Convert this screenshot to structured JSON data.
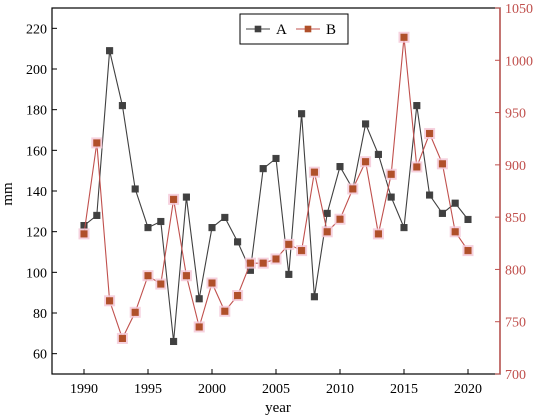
{
  "chart_data": {
    "type": "line",
    "xlabel": "year",
    "x_ticks": [
      "1990",
      "1995",
      "2000",
      "2005",
      "2010",
      "2015",
      "2020"
    ],
    "xlim": [
      1987.5,
      2022.5
    ],
    "y_axes": [
      {
        "side": "left",
        "label": "mm",
        "ylim": [
          50,
          230
        ],
        "ticks": [
          "60",
          "80",
          "100",
          "120",
          "140",
          "160",
          "180",
          "200",
          "220"
        ],
        "color": "#000000"
      },
      {
        "side": "right",
        "label": "",
        "ylim": [
          700,
          1050
        ],
        "ticks": [
          "700",
          "750",
          "800",
          "850",
          "900",
          "950",
          "1000",
          "1050"
        ],
        "color": "#c0504d"
      }
    ],
    "legend_placement": "top-center",
    "grid": false,
    "x": [
      1990,
      1991,
      1992,
      1993,
      1994,
      1995,
      1996,
      1997,
      1998,
      1999,
      2000,
      2001,
      2002,
      2003,
      2004,
      2005,
      2006,
      2007,
      2008,
      2009,
      2010,
      2011,
      2012,
      2013,
      2014,
      2015,
      2016,
      2017,
      2018,
      2019,
      2020
    ],
    "series": [
      {
        "name": "A",
        "axis": "left",
        "color": "#404040",
        "line_color": "#404040",
        "marker_color": "#404040",
        "values": [
          123,
          128,
          209,
          182,
          141,
          122,
          125,
          66,
          137,
          87,
          122,
          127,
          115,
          101,
          151,
          156,
          99,
          178,
          88,
          129,
          152,
          141,
          173,
          158,
          137,
          122,
          182,
          138,
          129,
          134,
          126
        ]
      },
      {
        "name": "B",
        "axis": "right",
        "color": "#c0504d",
        "line_color": "#c0504d",
        "marker_color": "#b0502a",
        "values": [
          834,
          921,
          770,
          734,
          759,
          794,
          786,
          867,
          794,
          745,
          787,
          760,
          775,
          806,
          806,
          810,
          824,
          818,
          893,
          836,
          848,
          877,
          903,
          834,
          891,
          1022,
          898,
          930,
          901,
          836,
          818
        ]
      }
    ]
  }
}
